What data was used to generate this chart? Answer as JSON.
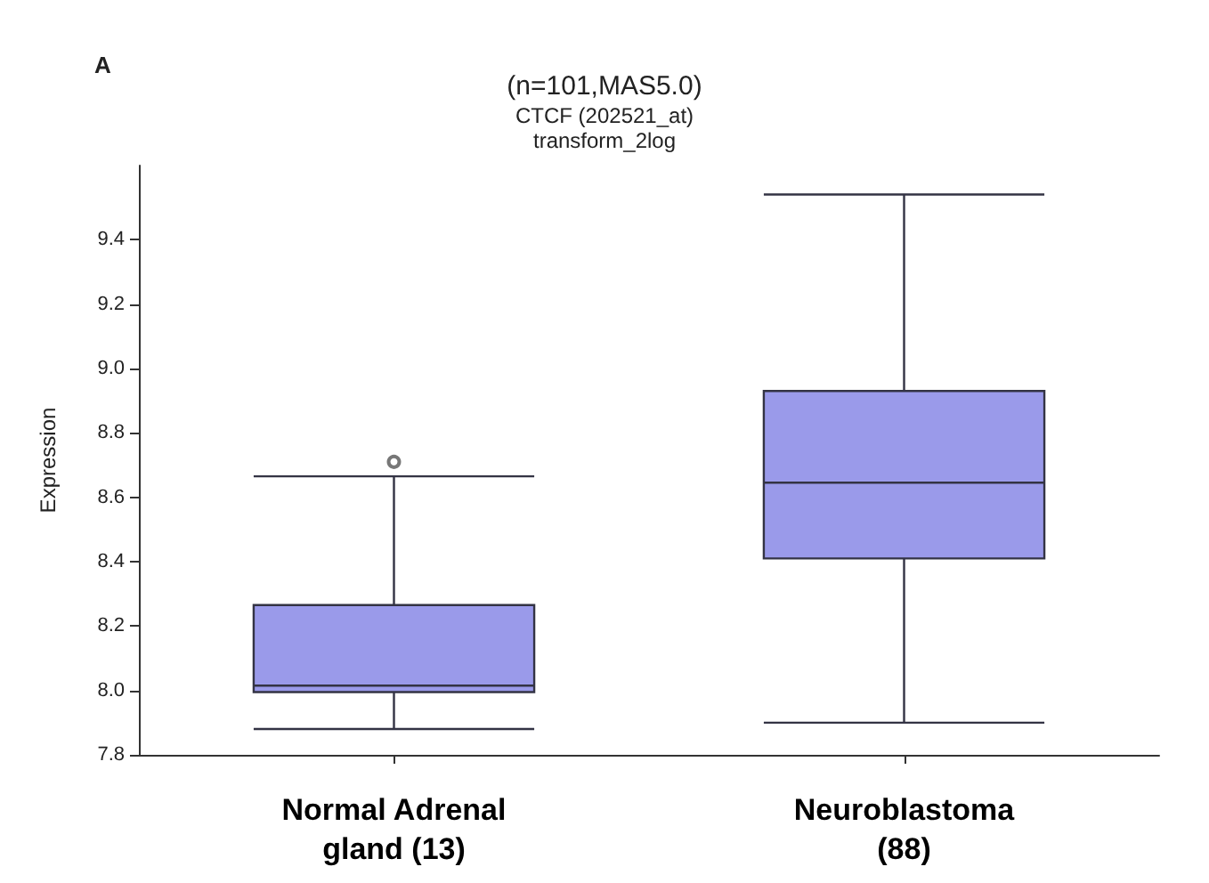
{
  "chart_data": {
    "type": "box",
    "title": "(n=101,MAS5.0)",
    "subtitle": "CTCF (202521_at)\ntransform_2log",
    "ylabel": "Expression",
    "annotations": [
      "A"
    ],
    "categories": [
      "Normal Adrenal\ngland (13)",
      "Neuroblastoma\n(88)"
    ],
    "series": [
      {
        "color": "#9a9aea",
        "boxes": [
          {
            "low": 7.88,
            "q1": 7.995,
            "median": 8.015,
            "q3": 8.265,
            "high": 8.665,
            "outliers": [
              8.71
            ]
          },
          {
            "low": 7.9,
            "q1": 8.41,
            "median": 8.645,
            "q3": 8.93,
            "high": 9.54
          }
        ]
      }
    ],
    "ylim": [
      7.8,
      9.63
    ],
    "yticks": [
      7.8,
      {
        "value": 8,
        "label": "8.0"
      },
      8.2,
      8.4,
      8.6,
      8.8,
      {
        "value": 9,
        "label": "9.0"
      },
      9.2,
      9.4
    ],
    "marker": "circle"
  }
}
